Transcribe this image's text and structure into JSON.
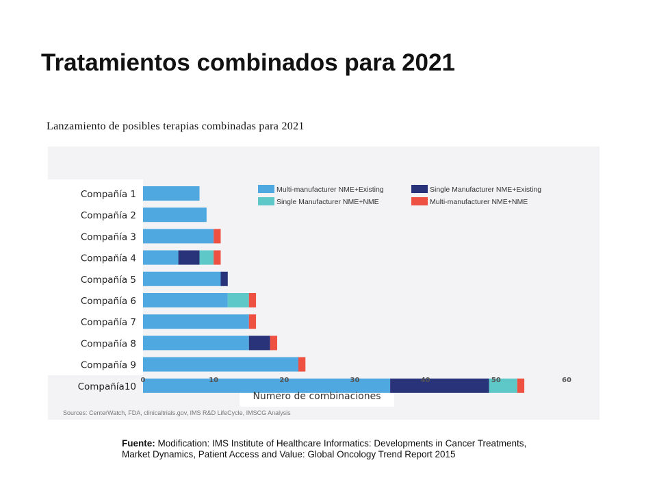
{
  "slide": {
    "title": "Tratamientos combinados para 2021",
    "caption": "Lanzamiento  de posibles terapias combinadas para 2021"
  },
  "chart_data": {
    "type": "bar",
    "orientation": "horizontal",
    "stacked": true,
    "categories": [
      "Compañía 1",
      "Compañía 2",
      "Compañía 3",
      "Compañía 4",
      "Compañía 5",
      "Compañía 6",
      "Compañía 7",
      "Compañía 8",
      "Compañía 9",
      "Compañía10"
    ],
    "series": [
      {
        "name": "Multi-manufacturer NME+Existing",
        "color": "#4fa8e0",
        "values": [
          8,
          9,
          10,
          5,
          11,
          12,
          15,
          15,
          22,
          35
        ]
      },
      {
        "name": "Single Manufacturer  NME+Existing",
        "color": "#28337a",
        "values": [
          0,
          0,
          0,
          3,
          1,
          0,
          0,
          3,
          0,
          14
        ]
      },
      {
        "name": "Single Manufacturer NME+NME",
        "color": "#5ec7c7",
        "values": [
          0,
          0,
          0,
          2,
          0,
          3,
          0,
          0,
          0,
          4
        ]
      },
      {
        "name": "Multi-manufacturer NME+NME",
        "color": "#ee5142",
        "values": [
          0,
          0,
          1,
          1,
          0,
          1,
          1,
          1,
          1,
          1
        ]
      }
    ],
    "xlabel": "Numero de combinaciones",
    "xlim": [
      0,
      60
    ],
    "xticks": [
      0,
      10,
      20,
      30,
      40,
      50,
      60
    ],
    "grid": false,
    "legend": "top-right",
    "sources": "Sources:  CenterWatch, FDA, clinicaltrials.gov, IMS R&D LifeCycle, IMSCG Analysis"
  },
  "footnote": {
    "label": "Fuente:",
    "text": " Modification: IMS Institute of Healthcare Informatics: Developments in Cancer Treatments, Market Dynamics, Patient Access and Value: Global Oncology Trend Report 2015"
  }
}
